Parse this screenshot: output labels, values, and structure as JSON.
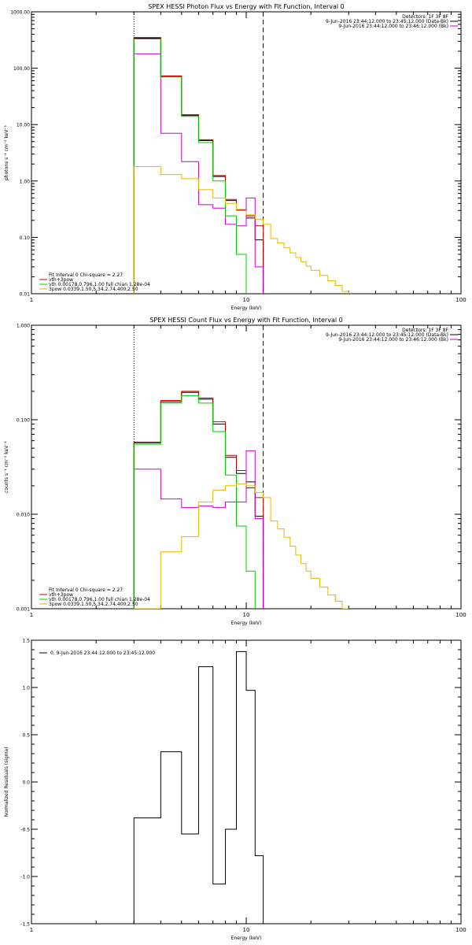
{
  "chart_data": [
    {
      "type": "line",
      "title": "SPEX HESSI Photon Flux vs Energy with Fit Function, Interval 0",
      "xlabel": "Energy (keV)",
      "ylabel": "photons s⁻¹ cm⁻² keV⁻¹",
      "xscale": "log",
      "yscale": "log",
      "xlim": [
        1,
        100
      ],
      "ylim": [
        0.01,
        1000
      ],
      "xticks": [
        "1",
        "10",
        "100"
      ],
      "yticks": [
        "0.01",
        "0.10",
        "1.00",
        "10.00",
        "100.00",
        "1000.00"
      ],
      "vlines": [
        {
          "x": 3,
          "style": "dotted",
          "color": "#000000"
        },
        {
          "x": 12,
          "style": "dashed",
          "color": "#000000"
        }
      ],
      "legend_topright": [
        {
          "text": "Detectors: 1F 3F 8F",
          "color": "#000000"
        },
        {
          "text": "9-Jun-2016 23:44:12.000 to 23:45:12.000 (Data-Bk)",
          "color": "#000000"
        },
        {
          "text": "9-Jun-2016 23:44:12.000 to 23:46:12.000 (Bk)",
          "color": "#cc00cc"
        }
      ],
      "legend_bottomleft": [
        {
          "text": "Fit Interval 0   Chi-square = 2.27",
          "color": "#000000"
        },
        {
          "text": "vth+3pow",
          "color": "#cc0000"
        },
        {
          "text": "vth 0.00178,0.796,1.00  full chian 1.28e-04",
          "color": "#00cc00"
        },
        {
          "text": "3pow 0.0339,1.50,5.34,2.74,400,2.50",
          "color": "#e6b800"
        }
      ],
      "series": [
        {
          "name": "Data-Bk",
          "color": "#000000",
          "edges": [
            3,
            4,
            5,
            6,
            7,
            8,
            9,
            10,
            11,
            12
          ],
          "values": [
            340,
            72,
            14.5,
            5.2,
            1.2,
            0.45,
            0.3,
            0.22,
            0.09
          ]
        },
        {
          "name": "vth+3pow",
          "color": "#cc0000",
          "edges": [
            3,
            4,
            5,
            6,
            7,
            8,
            9,
            10,
            11,
            12
          ],
          "values": [
            350,
            73,
            15,
            5.4,
            1.25,
            0.47,
            0.31,
            0.24,
            0.16
          ]
        },
        {
          "name": "Bk",
          "color": "#cc00cc",
          "edges": [
            3,
            4,
            5,
            6,
            7,
            8,
            9,
            10,
            11,
            12
          ],
          "values": [
            180,
            7,
            2.2,
            0.38,
            0.33,
            0.17,
            0.16,
            0.5,
            0.03
          ]
        },
        {
          "name": "vth",
          "color": "#00cc00",
          "edges": [
            3,
            4,
            5,
            6,
            7,
            8,
            9,
            10
          ],
          "values": [
            330,
            70,
            14,
            4.8,
            1.0,
            0.24,
            0.05,
            0.01
          ]
        },
        {
          "name": "3pow",
          "color": "#e6b800",
          "edges": [
            3,
            4,
            5,
            6,
            7,
            8,
            9,
            10,
            11,
            12,
            13,
            14,
            15,
            16,
            17,
            18,
            19,
            20,
            22,
            24,
            26,
            28,
            30
          ],
          "values": [
            1.8,
            1.3,
            1.1,
            0.7,
            0.5,
            0.4,
            0.3,
            0.25,
            0.21,
            0.17,
            0.095,
            0.08,
            0.065,
            0.053,
            0.044,
            0.037,
            0.031,
            0.026,
            0.021,
            0.017,
            0.014,
            0.011
          ]
        }
      ]
    },
    {
      "type": "line",
      "title": "SPEX HESSI Count Flux vs Energy with Fit Function, Interval 0",
      "xlabel": "Energy (keV)",
      "ylabel": "counts s⁻¹ cm⁻² keV⁻¹",
      "xscale": "log",
      "yscale": "log",
      "xlim": [
        1,
        100
      ],
      "ylim": [
        0.001,
        1
      ],
      "xticks": [
        "1",
        "10",
        "100"
      ],
      "yticks": [
        "0.001",
        "0.010",
        "0.100",
        "1.000"
      ],
      "vlines": [
        {
          "x": 3,
          "style": "dotted",
          "color": "#000000"
        },
        {
          "x": 12,
          "style": "dashed",
          "color": "#000000"
        }
      ],
      "legend_topright": [
        {
          "text": "Detectors: 1F 3F 8F",
          "color": "#000000"
        },
        {
          "text": "9-Jun-2016 23:44:12.000 to 23:45:12.000 (Data-Bk)",
          "color": "#000000"
        },
        {
          "text": "9-Jun-2016 23:44:12.000 to 23:46:12.000 (Bk)",
          "color": "#cc00cc"
        }
      ],
      "legend_bottomleft": [
        {
          "text": "Fit Interval 0   Chi-square = 2.27",
          "color": "#000000"
        },
        {
          "text": "vth+3pow",
          "color": "#cc0000"
        },
        {
          "text": "vth 0.00178,0.796,1.00  full chian 1.28e-04",
          "color": "#00cc00"
        },
        {
          "text": "3pow 0.0339,1.50,5.34,2.74,400,2.50",
          "color": "#e6b800"
        }
      ],
      "series": [
        {
          "name": "Data-Bk",
          "color": "#000000",
          "edges": [
            3,
            4,
            5,
            6,
            7,
            8,
            9,
            10,
            11,
            12
          ],
          "values": [
            0.057,
            0.155,
            0.195,
            0.165,
            0.09,
            0.04,
            0.027,
            0.022,
            0.0095
          ]
        },
        {
          "name": "vth+3pow",
          "color": "#cc0000",
          "edges": [
            3,
            4,
            5,
            6,
            7,
            8,
            9,
            10,
            11,
            12
          ],
          "values": [
            0.058,
            0.16,
            0.2,
            0.17,
            0.095,
            0.042,
            0.029,
            0.019,
            0.015
          ]
        },
        {
          "name": "Bk",
          "color": "#cc00cc",
          "edges": [
            3,
            4,
            5,
            6,
            7,
            8,
            9,
            10,
            11,
            12
          ],
          "values": [
            0.03,
            0.0145,
            0.0118,
            0.0122,
            0.0118,
            0.0135,
            0.0135,
            0.047,
            0.009
          ]
        },
        {
          "name": "vth",
          "color": "#00cc00",
          "edges": [
            3,
            4,
            5,
            6,
            7,
            8,
            9,
            10,
            11
          ],
          "values": [
            0.055,
            0.15,
            0.18,
            0.15,
            0.075,
            0.026,
            0.0075,
            0.0025,
            0.001
          ]
        },
        {
          "name": "3pow",
          "color": "#e6b800",
          "edges": [
            3,
            4,
            5,
            6,
            7,
            8,
            9,
            10,
            11,
            12,
            13,
            14,
            15,
            16,
            17,
            18,
            19,
            20,
            22,
            24,
            26,
            28,
            30
          ],
          "values": [
            0.001,
            0.004,
            0.0058,
            0.0135,
            0.018,
            0.02,
            0.021,
            0.02,
            0.017,
            0.015,
            0.0085,
            0.007,
            0.0057,
            0.0046,
            0.0037,
            0.003,
            0.0025,
            0.0021,
            0.0017,
            0.0014,
            0.0012,
            0.001
          ]
        }
      ]
    },
    {
      "type": "line",
      "title": "",
      "xlabel": "Energy (keV)",
      "ylabel": "Normalized Residuals (sigma)",
      "xscale": "log",
      "yscale": "linear",
      "xlim": [
        1,
        100
      ],
      "ylim": [
        -1.5,
        1.5
      ],
      "xticks": [
        "1",
        "10",
        "100"
      ],
      "yticks": [
        "-1.5",
        "-1.0",
        "-0.5",
        "0.0",
        "0.5",
        "1.0",
        "1.5"
      ],
      "legend_topleft": [
        {
          "text": "0,  9-Jun-2016 23:44:12.000 to 23:45:12.000",
          "color": "#000000"
        }
      ],
      "series": [
        {
          "name": "residuals",
          "color": "#000000",
          "edges": [
            3,
            4,
            5,
            6,
            7,
            8,
            9,
            10,
            11,
            12
          ],
          "values": [
            -0.38,
            0.32,
            -0.55,
            1.22,
            -1.08,
            -0.5,
            1.38,
            0.97,
            -0.78
          ]
        }
      ]
    }
  ]
}
